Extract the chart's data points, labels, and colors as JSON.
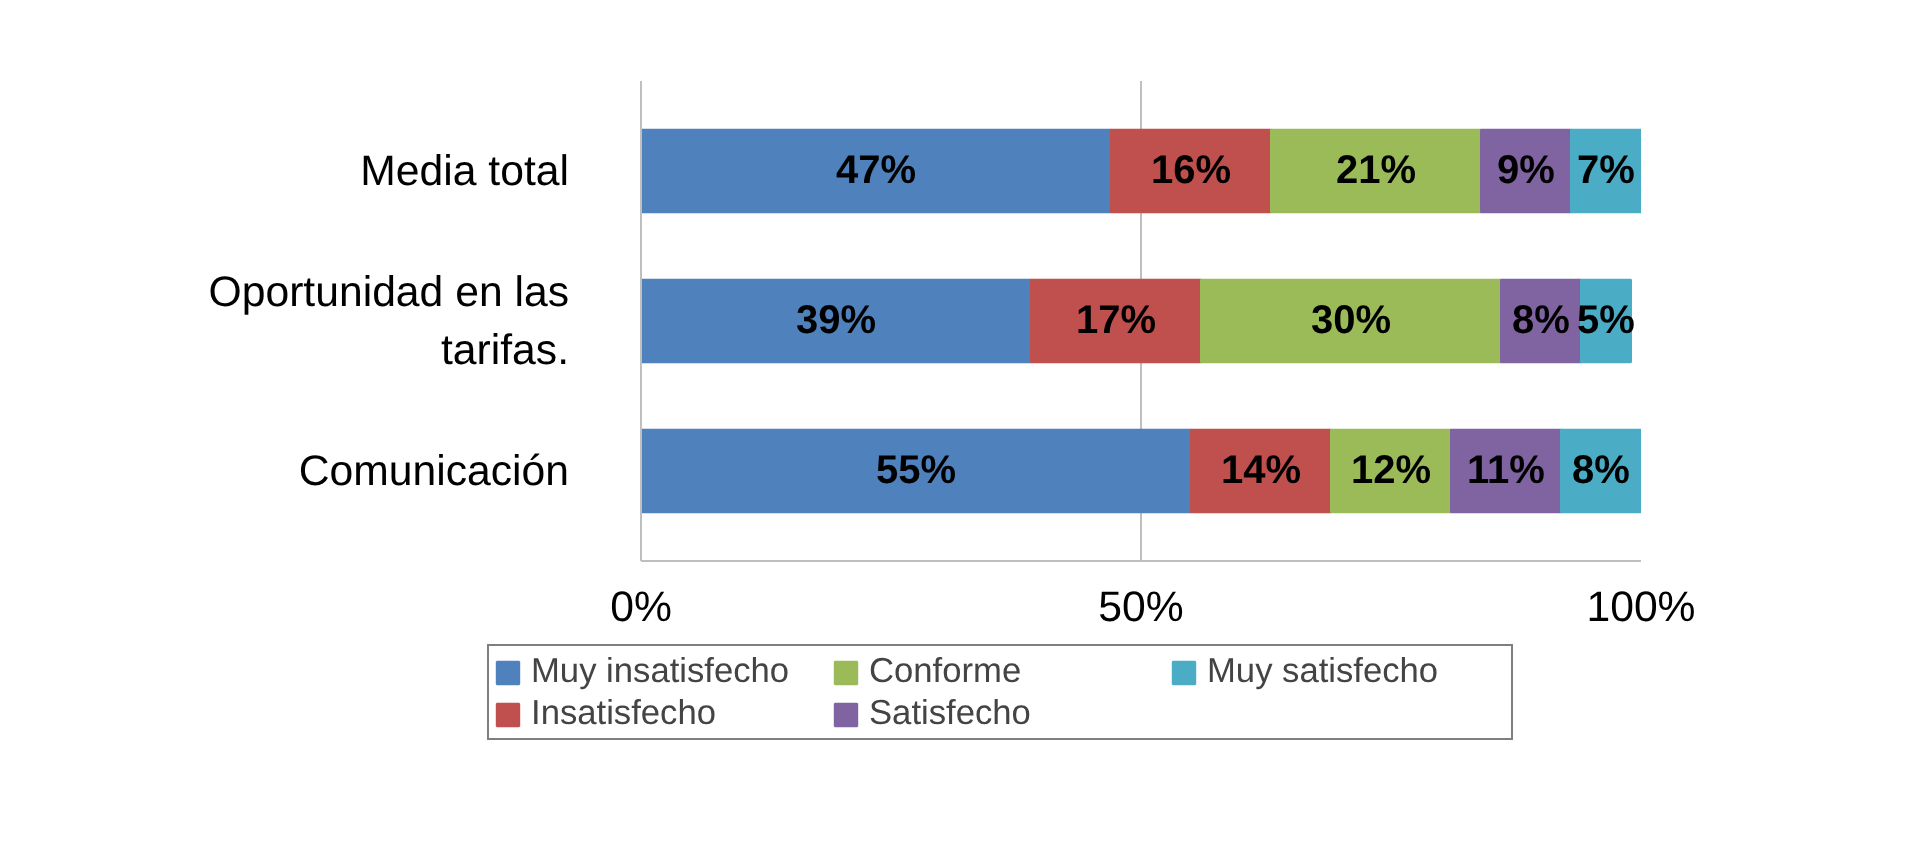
{
  "chart_data": {
    "type": "bar",
    "orientation": "horizontal",
    "stacked": true,
    "categories": [
      "Media total",
      "Oportunidad en las tarifas.",
      "Comunicación"
    ],
    "series": [
      {
        "name": "Muy insatisfecho",
        "color": "#4f81bd",
        "values": [
          47,
          39,
          55
        ],
        "value_labels": [
          "47%",
          "39%",
          "55%"
        ]
      },
      {
        "name": "Insatisfecho",
        "color": "#c0504d",
        "values": [
          16,
          17,
          14
        ],
        "value_labels": [
          "16%",
          "17%",
          "14%"
        ]
      },
      {
        "name": "Conforme",
        "color": "#9bbb59",
        "values": [
          21,
          30,
          12
        ],
        "value_labels": [
          "21%",
          "30%",
          "12%"
        ]
      },
      {
        "name": "Satisfecho",
        "color": "#8064a2",
        "values": [
          9,
          8,
          11
        ],
        "value_labels": [
          "9%",
          "8%",
          "11%"
        ]
      },
      {
        "name": "Muy satisfecho",
        "color": "#4bacc6",
        "values": [
          7,
          5,
          8
        ],
        "value_labels": [
          "7%",
          "5%",
          "8%"
        ]
      }
    ],
    "xlim": [
      0,
      100
    ],
    "xticks": [
      {
        "value": 0,
        "label": "0%"
      },
      {
        "value": 50,
        "label": "50%"
      },
      {
        "value": 100,
        "label": "100%"
      }
    ],
    "grid": "x",
    "legend": "bottom"
  }
}
